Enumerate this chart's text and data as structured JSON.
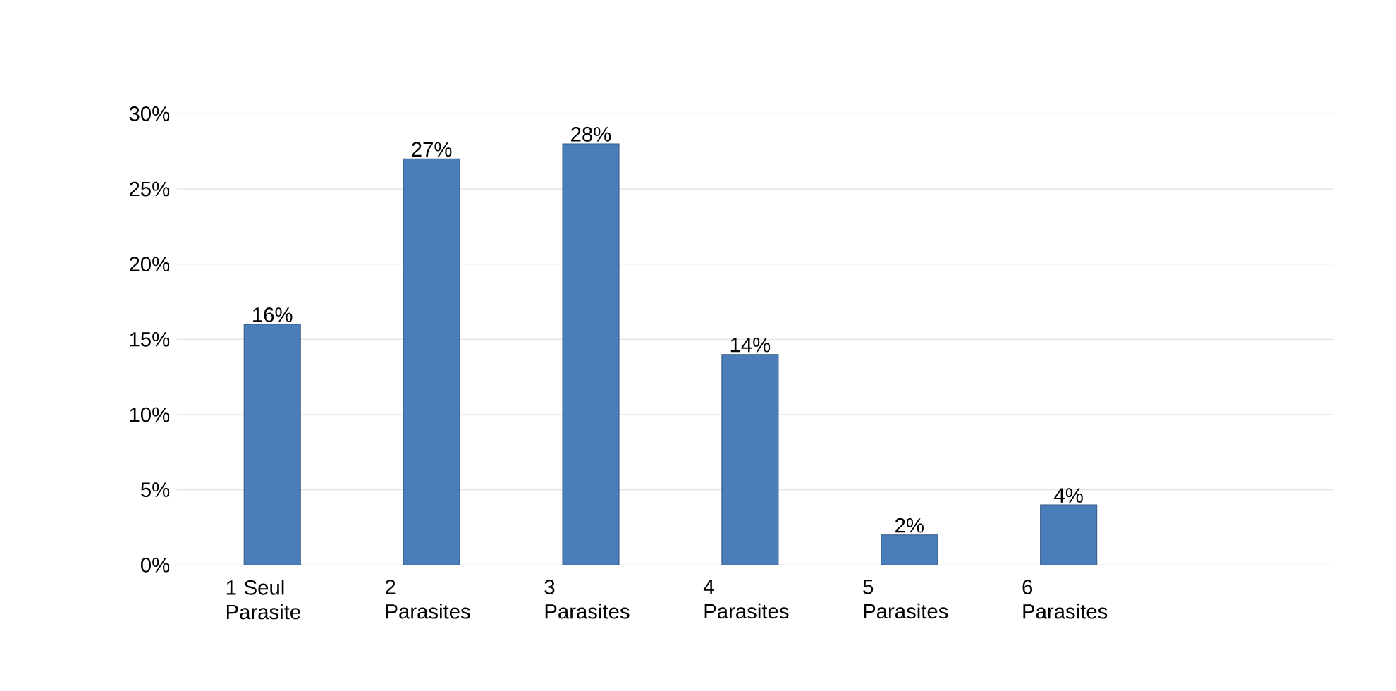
{
  "chart_data": {
    "type": "bar",
    "categories": [
      "1 Seul Parasite",
      "2 Parasites",
      "3 Parasites",
      "4 Parasites",
      "5 Parasites",
      "6 Parasites"
    ],
    "values": [
      16,
      27,
      28,
      14,
      2,
      4
    ],
    "value_labels": [
      "16%",
      "27%",
      "28%",
      "14%",
      "2%",
      "4%"
    ],
    "color": "#4a7ebb",
    "ylim": [
      0,
      30
    ],
    "yticks": [
      {
        "value": 0,
        "label": "0%"
      },
      {
        "value": 5,
        "label": "5%"
      },
      {
        "value": 10,
        "label": "10%"
      },
      {
        "value": 15,
        "label": "15%"
      },
      {
        "value": 20,
        "label": "20%"
      },
      {
        "value": 25,
        "label": "25%"
      },
      {
        "value": 30,
        "label": "30%"
      }
    ],
    "grid": "y"
  }
}
